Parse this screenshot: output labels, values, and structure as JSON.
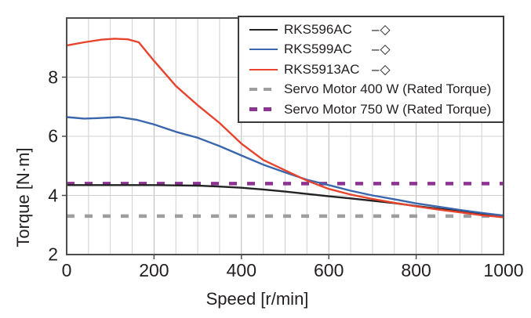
{
  "chart_data": {
    "type": "line",
    "title": "",
    "xlabel": "Speed [r/min]",
    "ylabel": "Torque [N·m]",
    "xlim": [
      0,
      1000
    ],
    "ylim": [
      2,
      10
    ],
    "x_ticks": [
      0,
      200,
      400,
      600,
      800,
      1000
    ],
    "y_ticks": [
      2,
      4,
      6,
      8
    ],
    "x_minor_step": 50,
    "y_gridlines": [
      4,
      6,
      8
    ],
    "grid": true,
    "legend_position": "top-right-inside",
    "colors": {
      "grid_minor": "#d0d0d0",
      "grid_major": "#b8b8b8",
      "plot_border": "#4d4d4d",
      "text": "#231f20"
    },
    "series": [
      {
        "name": "RKS596AC",
        "marker_suffix": "–◇",
        "color": "#222222",
        "style": "solid",
        "points": [
          [
            0,
            4.35
          ],
          [
            50,
            4.35
          ],
          [
            100,
            4.35
          ],
          [
            150,
            4.35
          ],
          [
            200,
            4.35
          ],
          [
            250,
            4.34
          ],
          [
            300,
            4.33
          ],
          [
            350,
            4.3
          ],
          [
            400,
            4.26
          ],
          [
            450,
            4.2
          ],
          [
            500,
            4.13
          ],
          [
            550,
            4.05
          ],
          [
            600,
            3.97
          ],
          [
            650,
            3.9
          ],
          [
            700,
            3.82
          ],
          [
            750,
            3.74
          ],
          [
            800,
            3.64
          ],
          [
            850,
            3.55
          ],
          [
            900,
            3.47
          ],
          [
            950,
            3.38
          ],
          [
            1000,
            3.3
          ]
        ]
      },
      {
        "name": "RKS599AC",
        "marker_suffix": "–◇",
        "color": "#3a66ad",
        "style": "solid",
        "points": [
          [
            0,
            6.65
          ],
          [
            40,
            6.6
          ],
          [
            80,
            6.62
          ],
          [
            120,
            6.65
          ],
          [
            160,
            6.56
          ],
          [
            200,
            6.4
          ],
          [
            250,
            6.15
          ],
          [
            300,
            5.95
          ],
          [
            350,
            5.67
          ],
          [
            400,
            5.35
          ],
          [
            450,
            5.04
          ],
          [
            500,
            4.78
          ],
          [
            550,
            4.53
          ],
          [
            600,
            4.35
          ],
          [
            650,
            4.16
          ],
          [
            700,
            4.0
          ],
          [
            750,
            3.87
          ],
          [
            800,
            3.73
          ],
          [
            850,
            3.62
          ],
          [
            900,
            3.51
          ],
          [
            950,
            3.41
          ],
          [
            1000,
            3.32
          ]
        ]
      },
      {
        "name": "RKS5913AC",
        "marker_suffix": "–◇",
        "color": "#e8432d",
        "style": "solid",
        "points": [
          [
            0,
            9.07
          ],
          [
            40,
            9.18
          ],
          [
            80,
            9.27
          ],
          [
            110,
            9.3
          ],
          [
            140,
            9.28
          ],
          [
            165,
            9.18
          ],
          [
            200,
            8.55
          ],
          [
            250,
            7.7
          ],
          [
            300,
            7.05
          ],
          [
            350,
            6.45
          ],
          [
            400,
            5.75
          ],
          [
            450,
            5.2
          ],
          [
            500,
            4.85
          ],
          [
            550,
            4.5
          ],
          [
            600,
            4.22
          ],
          [
            650,
            4.03
          ],
          [
            700,
            3.88
          ],
          [
            750,
            3.75
          ],
          [
            800,
            3.63
          ],
          [
            850,
            3.52
          ],
          [
            900,
            3.43
          ],
          [
            950,
            3.33
          ],
          [
            1000,
            3.26
          ]
        ]
      },
      {
        "name": "Servo Motor 400 W (Rated Torque)",
        "marker_suffix": "",
        "color": "#9e9ea0",
        "style": "dashed",
        "points": [
          [
            0,
            3.3
          ],
          [
            1000,
            3.3
          ]
        ]
      },
      {
        "name": "Servo Motor 750 W (Rated Torque)",
        "marker_suffix": "",
        "color": "#8d3392",
        "style": "dashed",
        "points": [
          [
            0,
            4.4
          ],
          [
            1000,
            4.4
          ]
        ]
      }
    ]
  }
}
